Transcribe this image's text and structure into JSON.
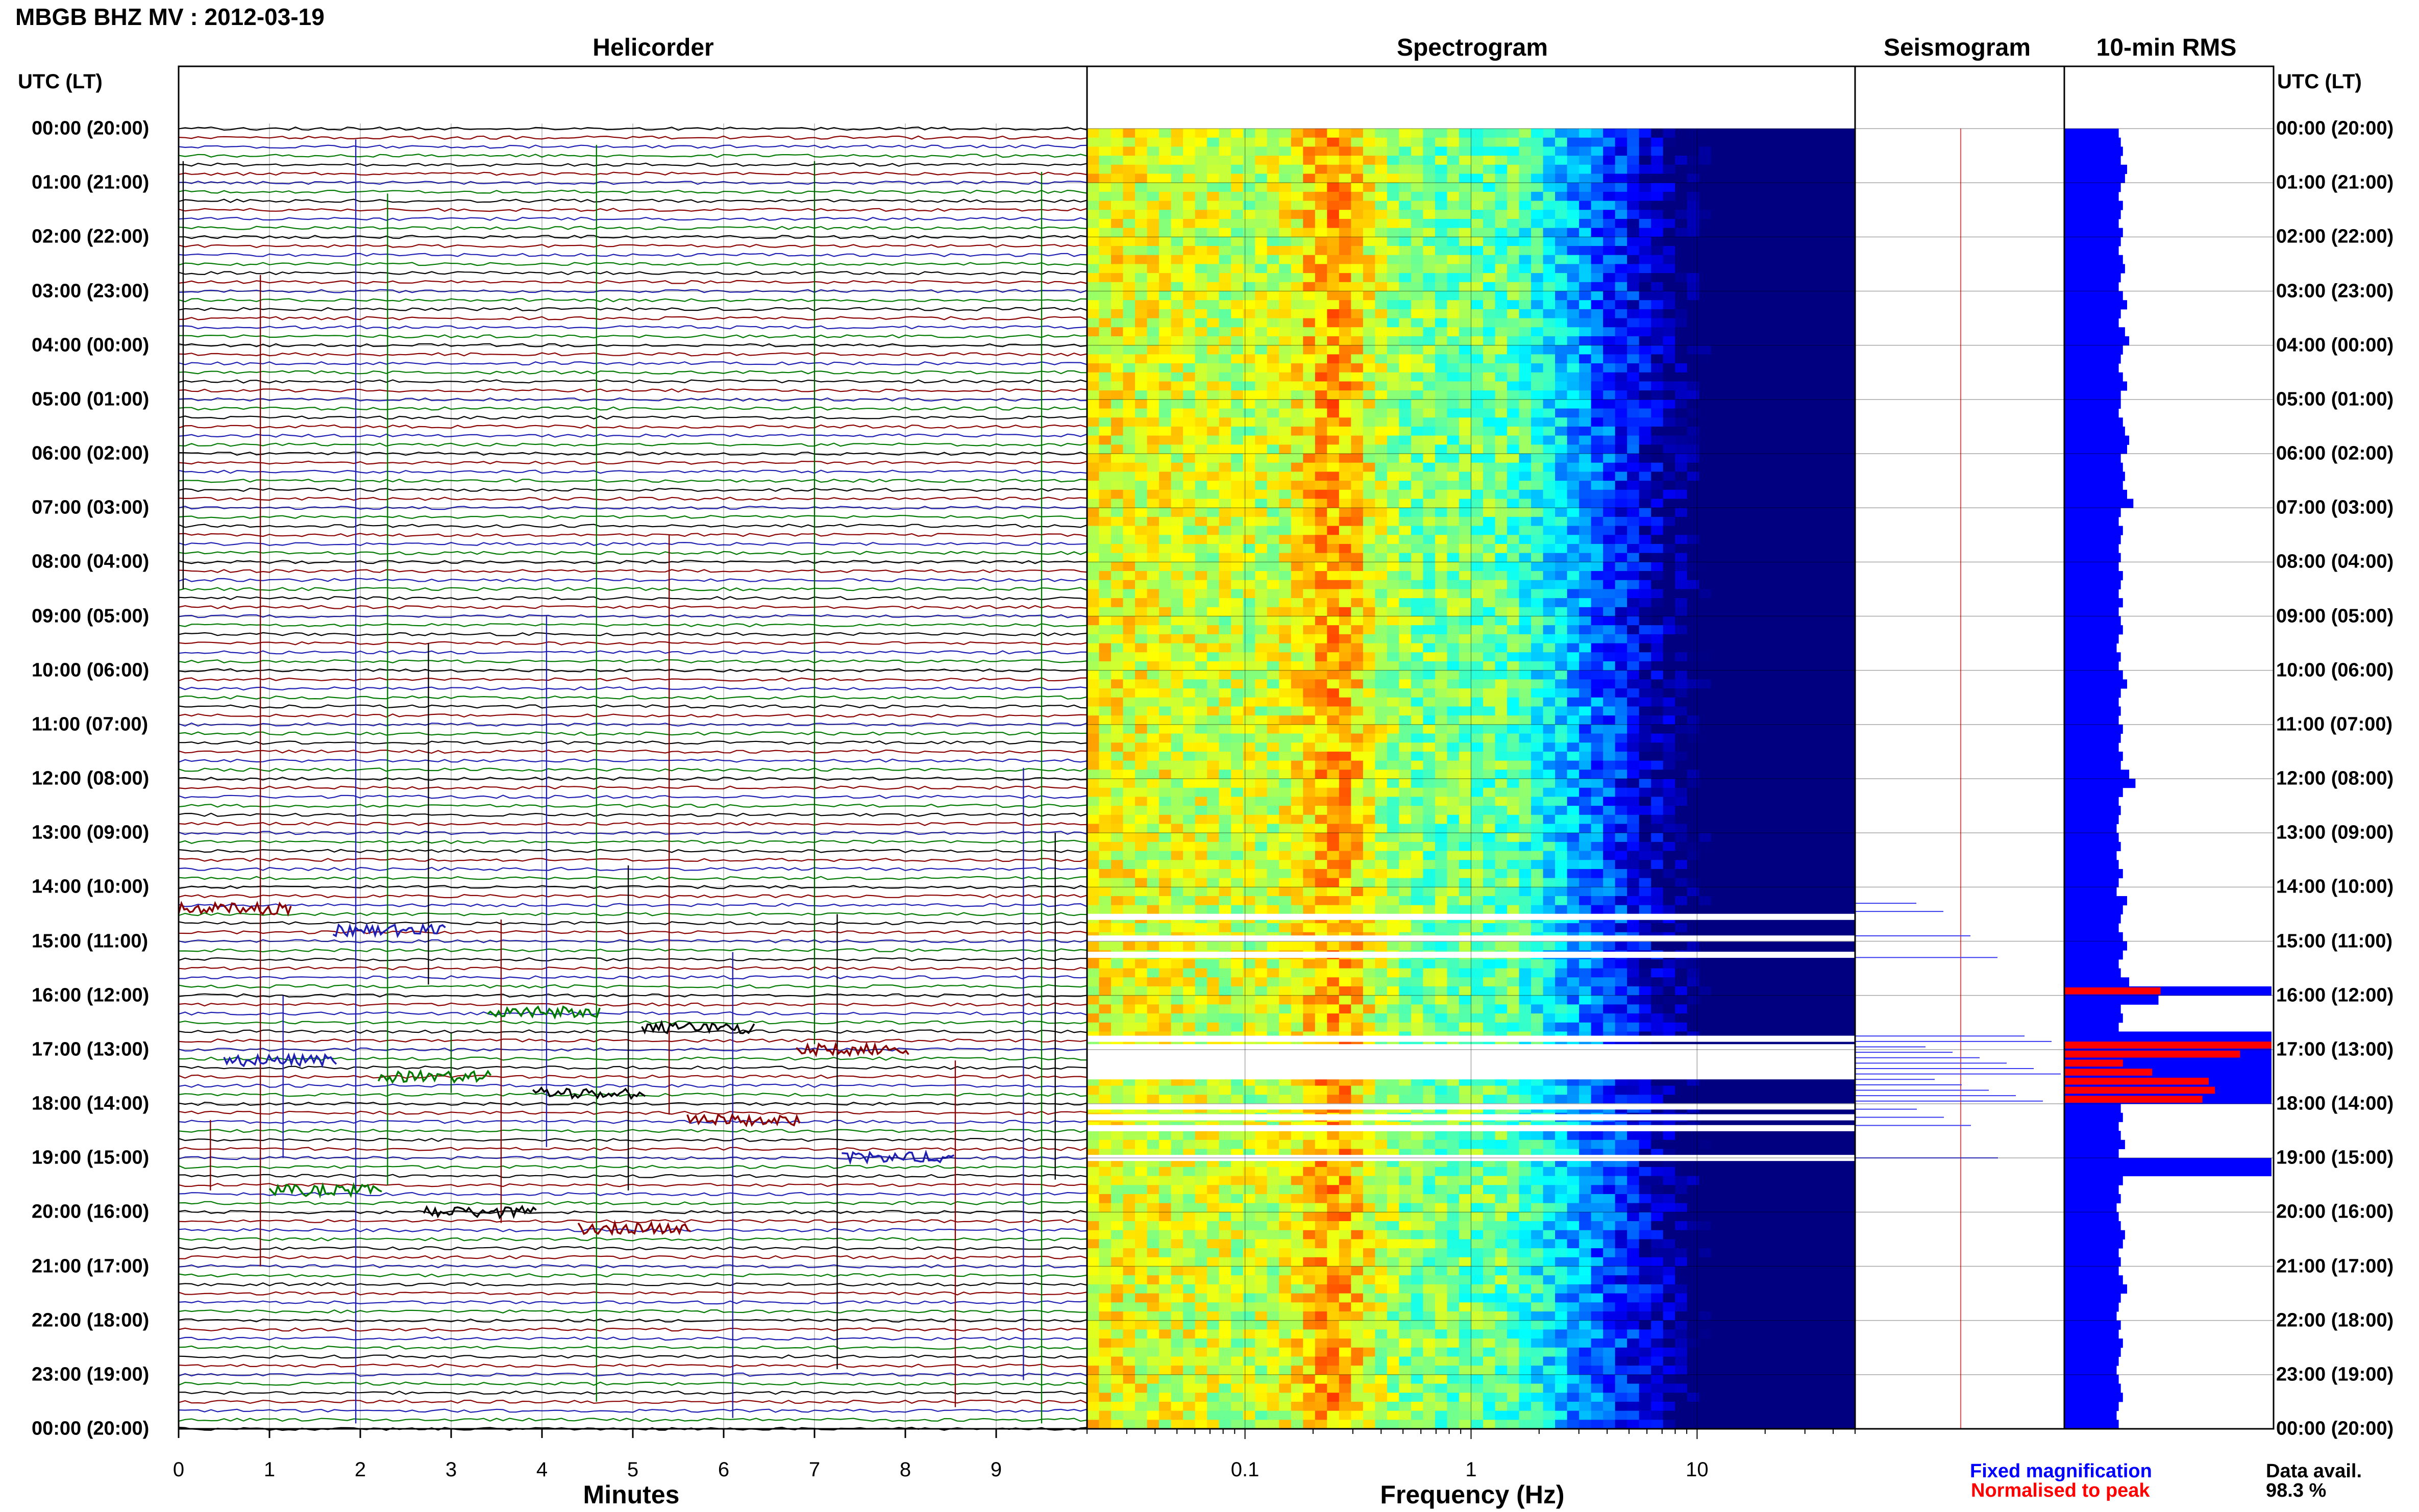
{
  "title": "MBGB BHZ MV : 2012-03-19",
  "panels": {
    "helicorder": "Helicorder",
    "spectrogram": "Spectrogram",
    "seismogram": "Seismogram",
    "rms": "10-min RMS"
  },
  "time_header": "UTC (LT)",
  "time_labels": [
    "00:00 (20:00)",
    "01:00 (21:00)",
    "02:00 (22:00)",
    "03:00 (23:00)",
    "04:00 (00:00)",
    "05:00 (01:00)",
    "06:00 (02:00)",
    "07:00 (03:00)",
    "08:00 (04:00)",
    "09:00 (05:00)",
    "10:00 (06:00)",
    "11:00 (07:00)",
    "12:00 (08:00)",
    "13:00 (09:00)",
    "14:00 (10:00)",
    "15:00 (11:00)",
    "16:00 (12:00)",
    "17:00 (13:00)",
    "18:00 (14:00)",
    "19:00 (15:00)",
    "20:00 (16:00)",
    "21:00 (17:00)",
    "22:00 (18:00)",
    "23:00 (19:00)",
    "00:00 (20:00)"
  ],
  "legend": {
    "fixed": "Fixed magnification",
    "normalised": "Normalised to peak",
    "data_avail_label": "Data avail.",
    "data_avail_value": "98.3 %"
  },
  "colors": {
    "trace_cycle": [
      "#000000",
      "#8b0000",
      "#1f1fb4",
      "#007a00"
    ],
    "rms_fixed": "#0000ff",
    "rms_normalised": "#ff0000",
    "legend_fixed": "#0000ff",
    "legend_normalised": "#ff0000"
  },
  "chart_data": [
    {
      "type": "line",
      "name": "Helicorder",
      "xlabel": "Minutes",
      "xlim": [
        0,
        10
      ],
      "x_ticks": [
        0,
        1,
        2,
        3,
        4,
        5,
        6,
        7,
        8,
        9
      ],
      "rows": 144,
      "row_minutes": 10,
      "events_hours": [
        14.4,
        14.8,
        16.3,
        16.6,
        17.0,
        17.2,
        17.5,
        17.8,
        18.3,
        19.0,
        19.6,
        20.0,
        20.3
      ],
      "gap_hours": [
        14.55,
        14.95,
        15.25,
        16.8,
        17.05,
        17.25,
        18.05,
        18.25,
        18.45,
        19.0
      ]
    },
    {
      "type": "heatmap",
      "name": "Spectrogram",
      "xlabel": "Frequency (Hz)",
      "x_scale": "log",
      "xlim": [
        0.02,
        50
      ],
      "x_ticks": [
        0.1,
        1,
        10
      ],
      "gap_hours": [
        14.55,
        14.95,
        15.25,
        16.8,
        17.05,
        17.25,
        18.05,
        18.25,
        18.45,
        19.0
      ]
    },
    {
      "type": "bar",
      "name": "10-min RMS",
      "orientation": "horizontal",
      "series": [
        {
          "name": "Fixed magnification",
          "values": [
            0.26,
            0.27,
            0.28,
            0.27,
            0.3,
            0.29,
            0.27,
            0.26,
            0.28,
            0.27,
            0.26,
            0.28,
            0.27,
            0.26,
            0.28,
            0.29,
            0.27,
            0.26,
            0.28,
            0.3,
            0.27,
            0.26,
            0.29,
            0.31,
            0.28,
            0.27,
            0.26,
            0.28,
            0.3,
            0.27,
            0.27,
            0.26,
            0.28,
            0.29,
            0.31,
            0.3,
            0.27,
            0.28,
            0.29,
            0.28,
            0.3,
            0.33,
            0.27,
            0.26,
            0.28,
            0.27,
            0.26,
            0.27,
            0.26,
            0.28,
            0.27,
            0.26,
            0.28,
            0.26,
            0.27,
            0.28,
            0.26,
            0.25,
            0.27,
            0.26,
            0.28,
            0.3,
            0.27,
            0.26,
            0.27,
            0.26,
            0.28,
            0.27,
            0.26,
            0.28,
            0.27,
            0.31,
            0.34,
            0.28,
            0.26,
            0.27,
            0.26,
            0.25,
            0.26,
            0.27,
            0.25,
            0.26,
            0.28,
            0.26,
            0.25,
            0.3,
            0.28,
            0.27,
            0.26,
            0.28,
            0.3,
            0.28,
            0.26,
            0.27,
            0.31,
            0.99,
            0.45,
            0.27,
            0.28,
            0.26,
            0.99,
            0.99,
            0.99,
            0.99,
            0.99,
            0.99,
            0.99,
            0.99,
            0.27,
            0.28,
            0.26,
            0.27,
            0.29,
            0.26,
            0.99,
            0.99,
            0.28,
            0.26,
            0.27,
            0.25,
            0.26,
            0.27,
            0.29,
            0.28,
            0.26,
            0.27,
            0.26,
            0.28,
            0.3,
            0.27,
            0.26,
            0.25,
            0.27,
            0.26,
            0.28,
            0.27,
            0.26,
            0.25,
            0.26,
            0.27,
            0.28,
            0.26,
            0.25,
            0.26
          ]
        },
        {
          "name": "Normalised to peak",
          "values": [
            0,
            0,
            0,
            0,
            0,
            0,
            0,
            0,
            0,
            0,
            0,
            0,
            0,
            0,
            0,
            0,
            0,
            0,
            0,
            0,
            0,
            0,
            0,
            0,
            0,
            0,
            0,
            0,
            0,
            0,
            0,
            0,
            0,
            0,
            0,
            0,
            0,
            0,
            0,
            0,
            0,
            0,
            0,
            0,
            0,
            0,
            0,
            0,
            0,
            0,
            0,
            0,
            0,
            0,
            0,
            0,
            0,
            0,
            0,
            0,
            0,
            0,
            0,
            0,
            0,
            0,
            0,
            0,
            0,
            0,
            0,
            0,
            0,
            0,
            0,
            0,
            0,
            0,
            0,
            0,
            0,
            0,
            0,
            0,
            0,
            0,
            0,
            0,
            0,
            0,
            0,
            0,
            0,
            0,
            0,
            0.46,
            0,
            0,
            0,
            0,
            0,
            0.99,
            0.84,
            0.28,
            0.42,
            0.69,
            0.72,
            0.66,
            0,
            0,
            0,
            0,
            0,
            0,
            0,
            0,
            0,
            0,
            0,
            0,
            0,
            0,
            0,
            0,
            0,
            0,
            0,
            0,
            0,
            0,
            0,
            0,
            0,
            0,
            0,
            0,
            0,
            0,
            0,
            0,
            0,
            0,
            0,
            0
          ]
        }
      ]
    }
  ]
}
